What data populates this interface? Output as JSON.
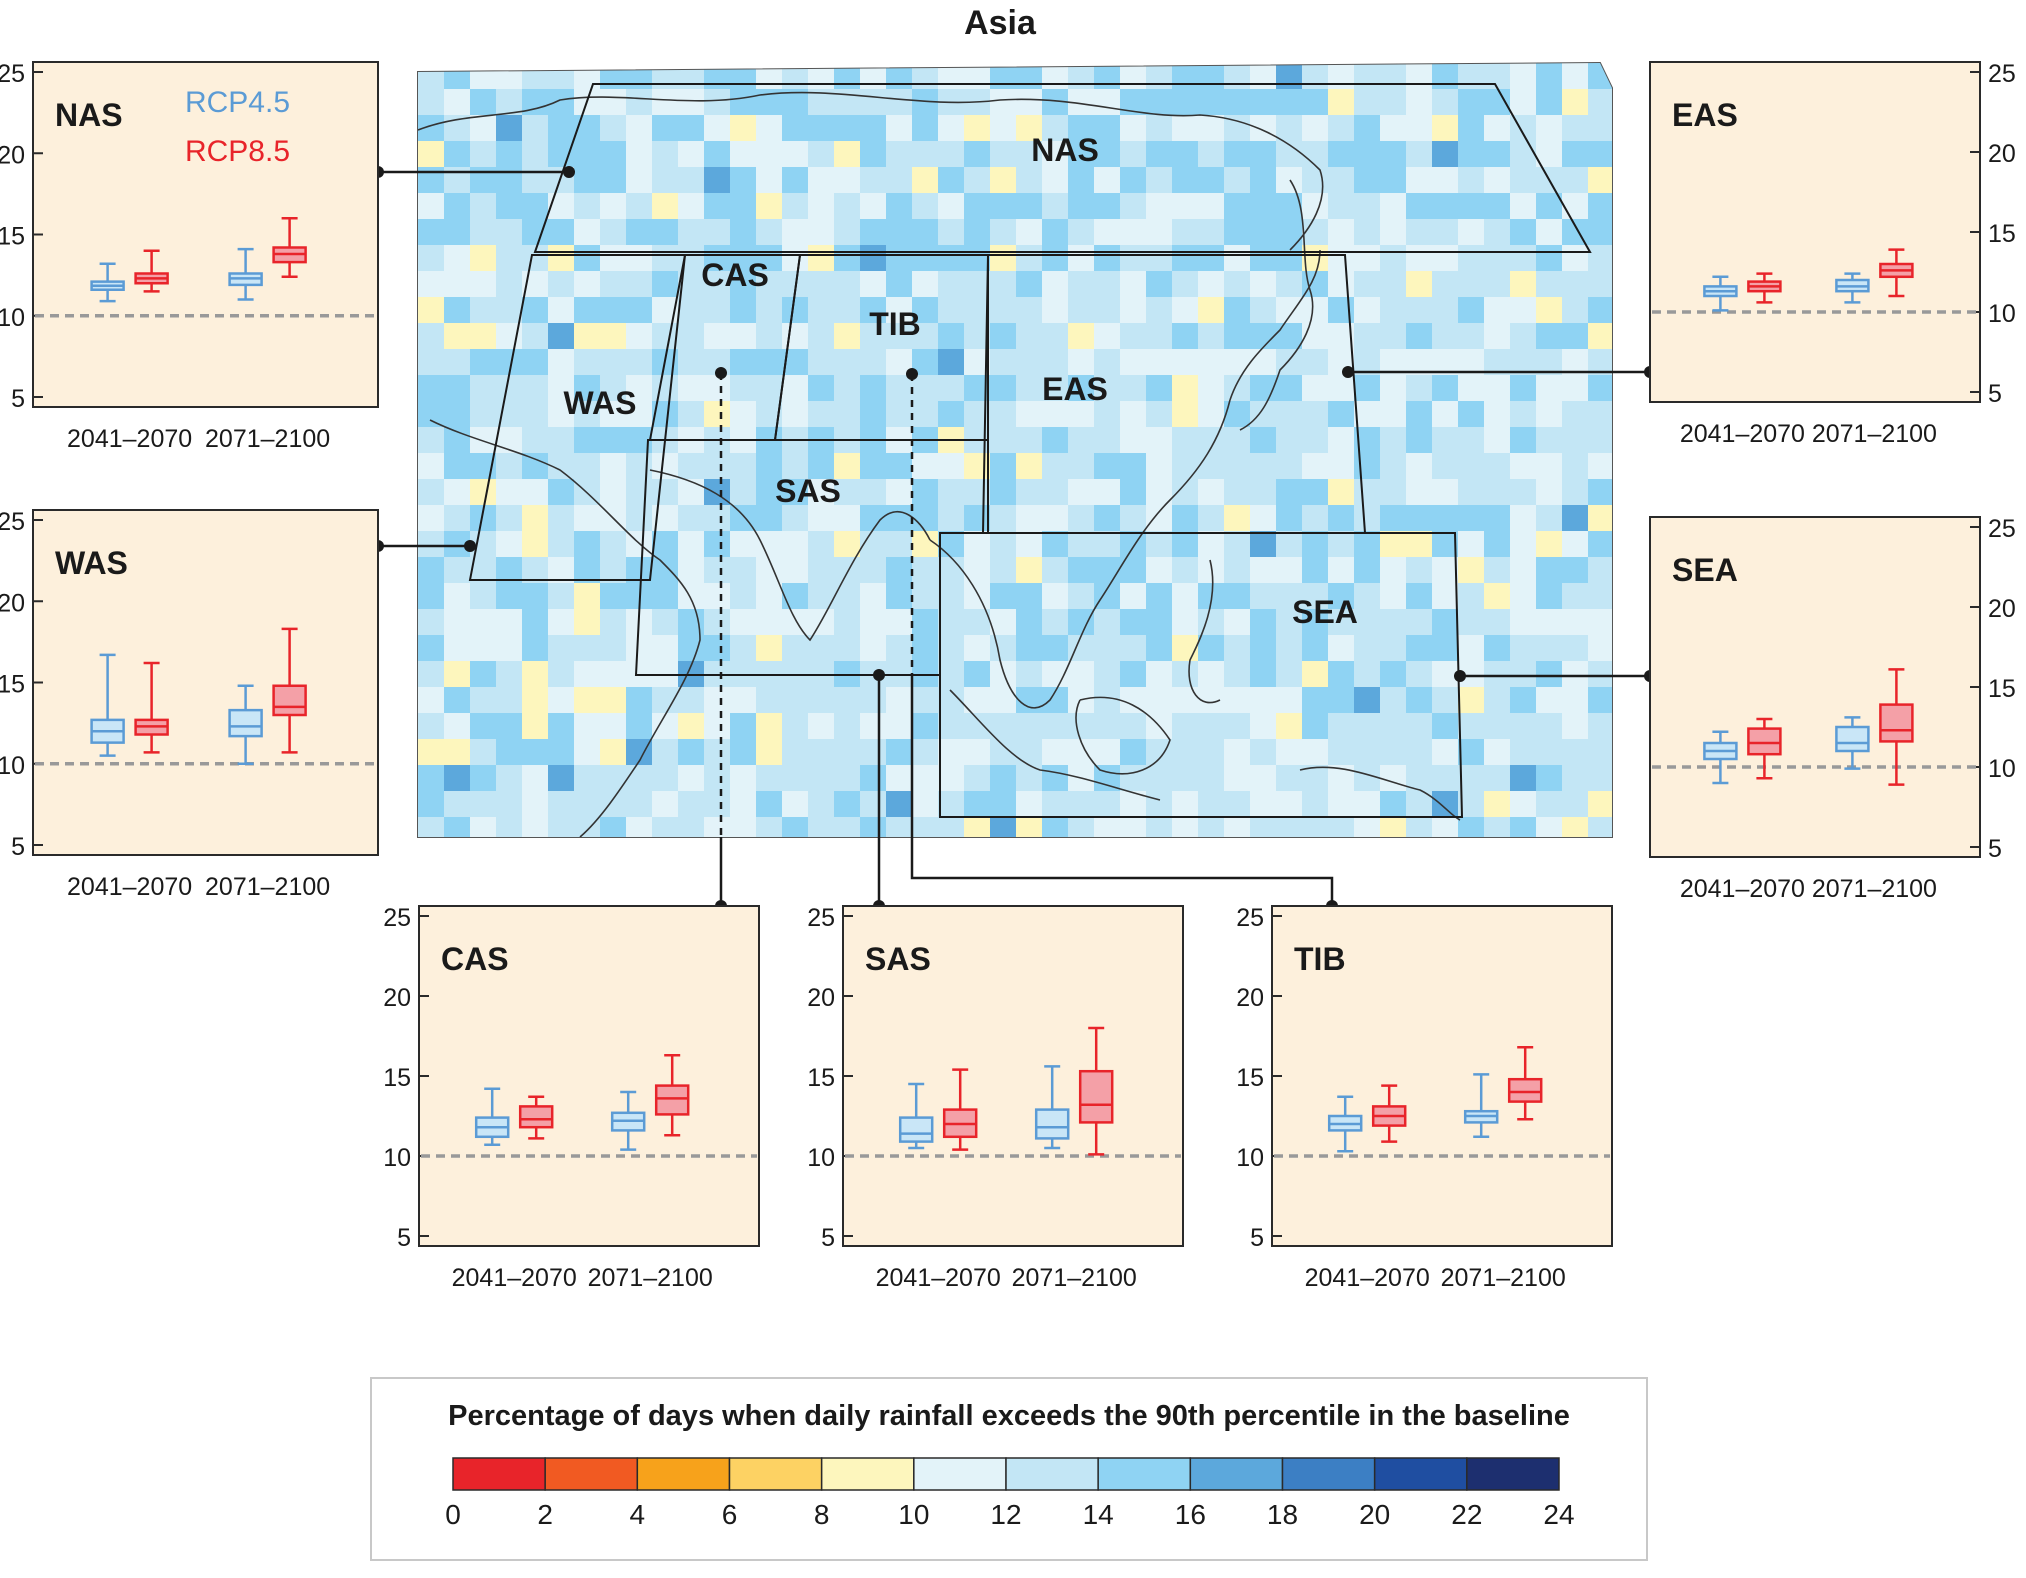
{
  "figure_title": "Asia",
  "legend": {
    "series": [
      {
        "name": "RCP4.5",
        "color": "#5b9bd5"
      },
      {
        "name": "RCP8.5",
        "color": "#e8242a"
      }
    ]
  },
  "map": {
    "region_labels": [
      "NAS",
      "CAS",
      "TIB",
      "WAS",
      "EAS",
      "SAS",
      "SEA"
    ]
  },
  "colorbar": {
    "title": "Percentage of days when daily rainfall exceeds the 90th percentile in the baseline",
    "ticks": [
      "0",
      "2",
      "4",
      "6",
      "8",
      "10",
      "12",
      "14",
      "16",
      "18",
      "20",
      "22",
      "24"
    ],
    "colors": [
      "#e8242a",
      "#f15a22",
      "#f7a21b",
      "#fdd263",
      "#fdf6bd",
      "#e3f3f9",
      "#c3e6f5",
      "#8fd3f3",
      "#5ca8dc",
      "#3c7fc4",
      "#1f4ea1",
      "#1d2f6f"
    ]
  },
  "colors": {
    "panel_bg": "#fdf0dc",
    "rcp45_fill": "#c9e6f7",
    "rcp85_fill": "#f4a0a7",
    "baseline": "#999999",
    "map_ocean": "#e6f4fa"
  },
  "chart_data": [
    {
      "type": "box",
      "title": "NAS",
      "categories": [
        "2041–2070",
        "2071–2100"
      ],
      "ylim": [
        5,
        25
      ],
      "yticks": [
        "5",
        "10",
        "15",
        "20",
        "25"
      ],
      "baseline": 10,
      "series": [
        {
          "name": "RCP4.5",
          "boxes": [
            {
              "min": 10.9,
              "q1": 11.6,
              "median": 11.85,
              "q3": 12.1,
              "max": 13.2
            },
            {
              "min": 11.0,
              "q1": 11.9,
              "median": 12.3,
              "q3": 12.6,
              "max": 14.1
            }
          ]
        },
        {
          "name": "RCP8.5",
          "boxes": [
            {
              "min": 11.5,
              "q1": 12.0,
              "median": 12.3,
              "q3": 12.6,
              "max": 14.0
            },
            {
              "min": 12.4,
              "q1": 13.3,
              "median": 13.8,
              "q3": 14.2,
              "max": 16.0
            }
          ]
        }
      ]
    },
    {
      "type": "box",
      "title": "WAS",
      "categories": [
        "2041–2070",
        "2071–2100"
      ],
      "ylim": [
        5,
        25
      ],
      "yticks": [
        "5",
        "10",
        "15",
        "20",
        "25"
      ],
      "baseline": 10,
      "series": [
        {
          "name": "RCP4.5",
          "boxes": [
            {
              "min": 10.5,
              "q1": 11.3,
              "median": 12.0,
              "q3": 12.7,
              "max": 16.7
            },
            {
              "min": 10.0,
              "q1": 11.7,
              "median": 12.3,
              "q3": 13.3,
              "max": 14.8
            }
          ]
        },
        {
          "name": "RCP8.5",
          "boxes": [
            {
              "min": 10.7,
              "q1": 11.8,
              "median": 12.3,
              "q3": 12.7,
              "max": 16.2
            },
            {
              "min": 10.7,
              "q1": 13.0,
              "median": 13.5,
              "q3": 14.8,
              "max": 18.3
            }
          ]
        }
      ]
    },
    {
      "type": "box",
      "title": "EAS",
      "categories": [
        "2041–2070",
        "2071–2100"
      ],
      "ylim": [
        5,
        25
      ],
      "yticks": [
        "5",
        "10",
        "15",
        "20",
        "25"
      ],
      "baseline": 10,
      "series": [
        {
          "name": "RCP4.5",
          "boxes": [
            {
              "min": 10.1,
              "q1": 11.0,
              "median": 11.3,
              "q3": 11.6,
              "max": 12.2
            },
            {
              "min": 10.6,
              "q1": 11.3,
              "median": 11.6,
              "q3": 12.0,
              "max": 12.4
            }
          ]
        },
        {
          "name": "RCP8.5",
          "boxes": [
            {
              "min": 10.6,
              "q1": 11.3,
              "median": 11.6,
              "q3": 11.9,
              "max": 12.4
            },
            {
              "min": 11.0,
              "q1": 12.2,
              "median": 12.6,
              "q3": 13.0,
              "max": 13.9
            }
          ]
        }
      ]
    },
    {
      "type": "box",
      "title": "SEA",
      "categories": [
        "2041–2070",
        "2071–2100"
      ],
      "ylim": [
        5,
        25
      ],
      "yticks": [
        "5",
        "10",
        "15",
        "20",
        "25"
      ],
      "baseline": 10,
      "series": [
        {
          "name": "RCP4.5",
          "boxes": [
            {
              "min": 9.0,
              "q1": 10.5,
              "median": 11.0,
              "q3": 11.5,
              "max": 12.2
            },
            {
              "min": 9.9,
              "q1": 11.0,
              "median": 11.5,
              "q3": 12.5,
              "max": 13.1
            }
          ]
        },
        {
          "name": "RCP8.5",
          "boxes": [
            {
              "min": 9.3,
              "q1": 10.8,
              "median": 11.5,
              "q3": 12.4,
              "max": 13.0
            },
            {
              "min": 8.9,
              "q1": 11.6,
              "median": 12.3,
              "q3": 13.9,
              "max": 16.1
            }
          ]
        }
      ]
    },
    {
      "type": "box",
      "title": "CAS",
      "categories": [
        "2041–2070",
        "2071–2100"
      ],
      "ylim": [
        5,
        25
      ],
      "yticks": [
        "5",
        "10",
        "15",
        "20",
        "25"
      ],
      "baseline": 10,
      "series": [
        {
          "name": "RCP4.5",
          "boxes": [
            {
              "min": 10.7,
              "q1": 11.2,
              "median": 11.8,
              "q3": 12.4,
              "max": 14.2
            },
            {
              "min": 10.4,
              "q1": 11.6,
              "median": 12.2,
              "q3": 12.7,
              "max": 14.0
            }
          ]
        },
        {
          "name": "RCP8.5",
          "boxes": [
            {
              "min": 11.1,
              "q1": 11.8,
              "median": 12.3,
              "q3": 13.1,
              "max": 13.7
            },
            {
              "min": 11.3,
              "q1": 12.6,
              "median": 13.6,
              "q3": 14.4,
              "max": 16.3
            }
          ]
        }
      ]
    },
    {
      "type": "box",
      "title": "SAS",
      "categories": [
        "2041–2070",
        "2071–2100"
      ],
      "ylim": [
        5,
        25
      ],
      "yticks": [
        "5",
        "10",
        "15",
        "20",
        "25"
      ],
      "baseline": 10,
      "series": [
        {
          "name": "RCP4.5",
          "boxes": [
            {
              "min": 10.5,
              "q1": 10.9,
              "median": 11.4,
              "q3": 12.4,
              "max": 14.5
            },
            {
              "min": 10.5,
              "q1": 11.1,
              "median": 11.8,
              "q3": 12.9,
              "max": 15.6
            }
          ]
        },
        {
          "name": "RCP8.5",
          "boxes": [
            {
              "min": 10.4,
              "q1": 11.2,
              "median": 12.0,
              "q3": 12.9,
              "max": 15.4
            },
            {
              "min": 10.1,
              "q1": 12.1,
              "median": 13.2,
              "q3": 15.3,
              "max": 18.0
            }
          ]
        }
      ]
    },
    {
      "type": "box",
      "title": "TIB",
      "categories": [
        "2041–2070",
        "2071–2100"
      ],
      "ylim": [
        5,
        25
      ],
      "yticks": [
        "5",
        "10",
        "15",
        "20",
        "25"
      ],
      "baseline": 10,
      "series": [
        {
          "name": "RCP4.5",
          "boxes": [
            {
              "min": 10.3,
              "q1": 11.6,
              "median": 12.0,
              "q3": 12.5,
              "max": 13.7
            },
            {
              "min": 11.2,
              "q1": 12.1,
              "median": 12.5,
              "q3": 12.8,
              "max": 15.1
            }
          ]
        },
        {
          "name": "RCP8.5",
          "boxes": [
            {
              "min": 10.9,
              "q1": 11.9,
              "median": 12.5,
              "q3": 13.1,
              "max": 14.4
            },
            {
              "min": 12.3,
              "q1": 13.4,
              "median": 14.0,
              "q3": 14.8,
              "max": 16.8
            }
          ]
        }
      ]
    }
  ]
}
